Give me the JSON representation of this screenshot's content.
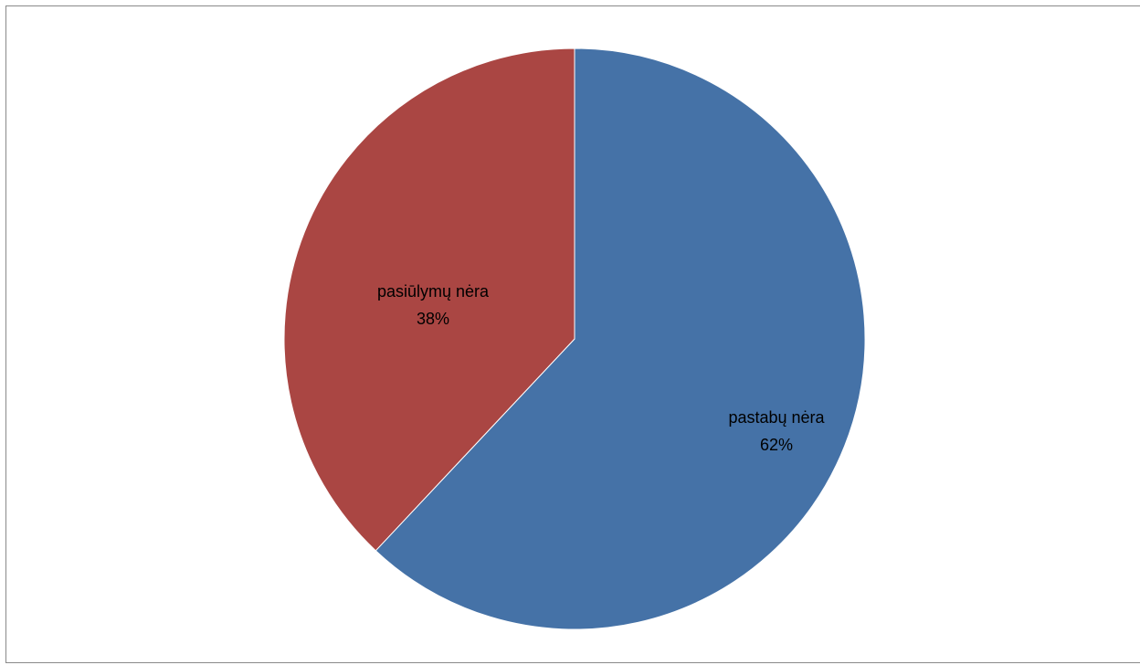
{
  "chart_data": {
    "type": "pie",
    "title": "",
    "legend": "none",
    "start_angle_deg": 0,
    "direction": "clockwise",
    "slices": [
      {
        "label": "pastabų nėra",
        "value": 62,
        "percent_label": "62%",
        "color": "#4572a7"
      },
      {
        "label": "pasiūlymų nėra",
        "value": 38,
        "percent_label": "38%",
        "color": "#aa4643"
      }
    ]
  }
}
